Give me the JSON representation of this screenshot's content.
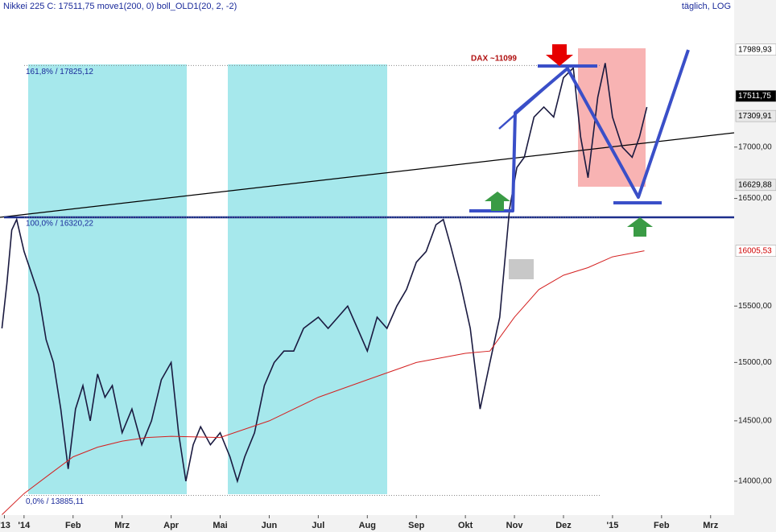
{
  "chart_data": {
    "type": "line",
    "title": "Nikkei 225 C: 17511,75 move1(200, 0) boll_OLD1(20, 2, -2)",
    "subtitle": "täglich, LOG",
    "log_scale": true,
    "xlim": [
      0.51,
      15.48
    ],
    "ylim": [
      13727,
      18517
    ],
    "xticks": [
      {
        "value": 0.6,
        "label": "'13"
      },
      {
        "value": 1,
        "label": "'14"
      },
      {
        "value": 2,
        "label": "Feb"
      },
      {
        "value": 3,
        "label": "Mrz"
      },
      {
        "value": 4,
        "label": "Apr"
      },
      {
        "value": 5,
        "label": "Mai"
      },
      {
        "value": 6,
        "label": "Jun"
      },
      {
        "value": 7,
        "label": "Jul"
      },
      {
        "value": 8,
        "label": "Aug"
      },
      {
        "value": 9,
        "label": "Sep"
      },
      {
        "value": 10,
        "label": "Okt"
      },
      {
        "value": 11,
        "label": "Nov"
      },
      {
        "value": 12,
        "label": "Dez"
      },
      {
        "value": 13,
        "label": "'15"
      },
      {
        "value": 14,
        "label": "Feb"
      },
      {
        "value": 15,
        "label": "Mrz"
      }
    ],
    "yticks": [
      {
        "value": 14000,
        "label": "14000,00"
      },
      {
        "value": 14500,
        "label": "14500,00"
      },
      {
        "value": 15000,
        "label": "15000,00"
      },
      {
        "value": 15500,
        "label": "15500,00"
      },
      {
        "value": 16500,
        "label": "16500,00"
      },
      {
        "value": 17000,
        "label": "17000,00"
      }
    ],
    "series": [
      {
        "name": "Nikkei 225",
        "color": "#1a1a40",
        "x": [
          0.55,
          0.65,
          0.75,
          0.85,
          1.0,
          1.15,
          1.3,
          1.45,
          1.6,
          1.75,
          1.9,
          2.05,
          2.2,
          2.35,
          2.5,
          2.65,
          2.8,
          3.0,
          3.2,
          3.4,
          3.6,
          3.8,
          4.0,
          4.15,
          4.3,
          4.45,
          4.6,
          4.8,
          5.0,
          5.2,
          5.35,
          5.5,
          5.7,
          5.9,
          6.1,
          6.3,
          6.5,
          6.7,
          7.0,
          7.2,
          7.4,
          7.6,
          7.8,
          8.0,
          8.2,
          8.4,
          8.6,
          8.8,
          9.0,
          9.2,
          9.4,
          9.55,
          9.7,
          9.9,
          10.1,
          10.3,
          10.5,
          10.7,
          10.9,
          11.05,
          11.2,
          11.4,
          11.6,
          11.8,
          12.0,
          12.2,
          12.35,
          12.5,
          12.7,
          12.85,
          13.0,
          13.2,
          13.4,
          13.55,
          13.7
        ],
        "values": [
          15300,
          15700,
          16200,
          16300,
          16000,
          15800,
          15600,
          15200,
          15000,
          14600,
          14100,
          14600,
          14800,
          14500,
          14900,
          14700,
          14800,
          14400,
          14600,
          14300,
          14500,
          14850,
          15000,
          14400,
          14000,
          14300,
          14450,
          14300,
          14400,
          14200,
          14000,
          14200,
          14400,
          14800,
          15000,
          15100,
          15100,
          15300,
          15400,
          15300,
          15400,
          15500,
          15300,
          15100,
          15400,
          15300,
          15500,
          15650,
          15900,
          16000,
          16250,
          16300,
          16050,
          15700,
          15300,
          14600,
          15000,
          15400,
          16400,
          16800,
          16900,
          17300,
          17400,
          17300,
          17700,
          17800,
          17100,
          16700,
          17500,
          17850,
          17300,
          17000,
          16900,
          17100,
          17400
        ]
      },
      {
        "name": "move1(200, 0)",
        "color": "#d42020",
        "x": [
          0.55,
          1.0,
          1.5,
          2.0,
          2.5,
          3.0,
          3.5,
          4.0,
          5.0,
          6.0,
          7.0,
          8.0,
          9.0,
          10.0,
          10.5,
          11.0,
          11.5,
          12.0,
          12.5,
          13.0,
          13.65
        ],
        "values": [
          13730,
          13900,
          14050,
          14200,
          14280,
          14330,
          14360,
          14370,
          14360,
          14500,
          14700,
          14850,
          15000,
          15080,
          15100,
          15400,
          15650,
          15780,
          15850,
          15950,
          16005.53
        ]
      }
    ],
    "levels": [
      {
        "value": 17825.12,
        "label": "161,8% / 17825,12"
      },
      {
        "value": 16320.22,
        "label": "100,0% / 16320,22"
      },
      {
        "value": 13885.11,
        "label": "0,0% / 13885,11"
      }
    ],
    "markers": [
      {
        "value": 17989.93,
        "label": "17989,93",
        "color": "#000000",
        "bg": "#ffffff"
      },
      {
        "value": 17511.75,
        "label": "17511,75",
        "color": "#ffffff",
        "bg": "#000000"
      },
      {
        "value": 17309.91,
        "label": "17309,91",
        "color": "#000000",
        "bg": "#e8e8e8"
      },
      {
        "value": 16629.88,
        "label": "16629,88",
        "color": "#000000",
        "bg": "#e8e8e8"
      },
      {
        "value": 16005.53,
        "label": "16005,53",
        "color": "#d00000",
        "bg": "#ffffff"
      }
    ],
    "annotation": "DAX ~11099"
  }
}
